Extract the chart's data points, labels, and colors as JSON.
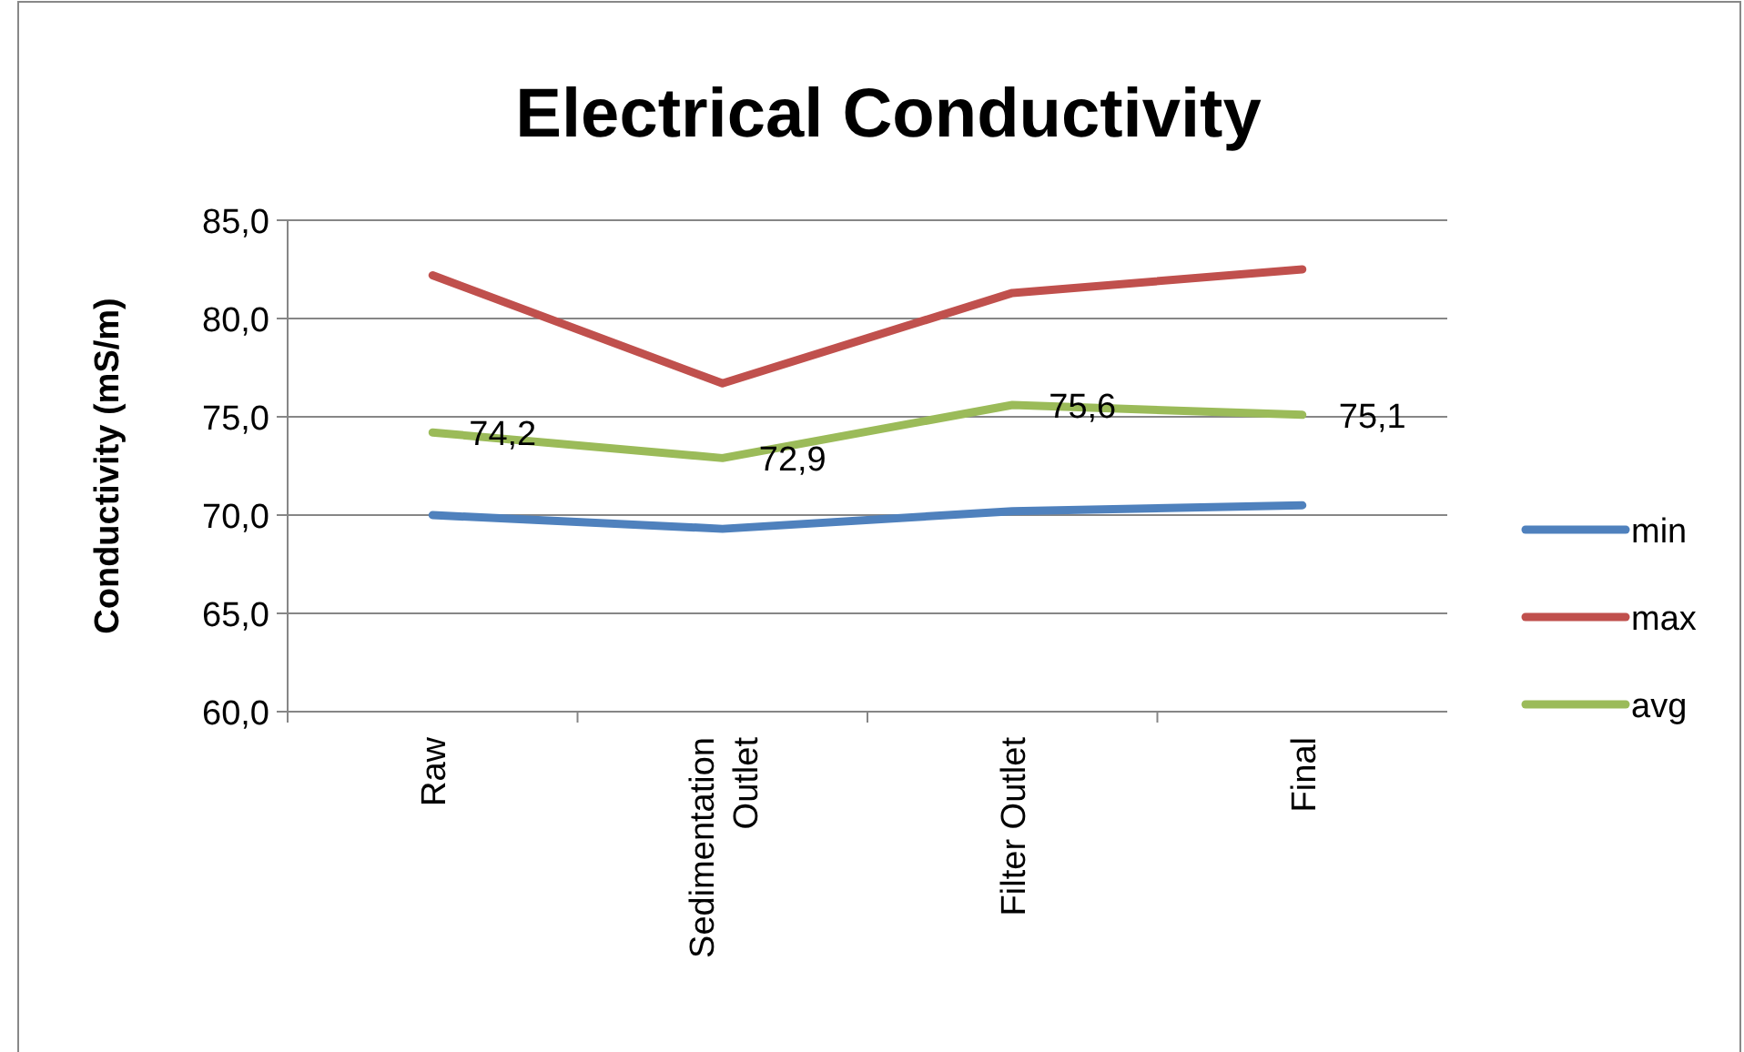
{
  "chart_data": {
    "type": "line",
    "title": "Electrical Conductivity",
    "ylabel": "Conductivity (mS/m)",
    "categories": [
      "Raw",
      "Sedimentation Outlet",
      "Filter Outlet",
      "Final"
    ],
    "series": [
      {
        "name": "min",
        "color": "#4f81bd",
        "values": [
          70.0,
          69.3,
          70.2,
          70.5
        ]
      },
      {
        "name": "max",
        "color": "#c0504d",
        "values": [
          82.2,
          76.7,
          81.3,
          82.5
        ]
      },
      {
        "name": "avg",
        "color": "#9bbb59",
        "values": [
          74.2,
          72.9,
          75.6,
          75.1
        ],
        "value_labels": [
          "74,2",
          "72,9",
          "75,6",
          "75,1"
        ]
      }
    ],
    "ylim": [
      60,
      85
    ],
    "yticks": [
      {
        "value": 60,
        "label": "60,0"
      },
      {
        "value": 65,
        "label": "65,0"
      },
      {
        "value": 70,
        "label": "70,0"
      },
      {
        "value": 75,
        "label": "75,0"
      },
      {
        "value": 80,
        "label": "80,0"
      },
      {
        "value": 85,
        "label": "85,0"
      }
    ],
    "grid": "y",
    "legend": "right",
    "marker": "none",
    "line_style": "solid"
  }
}
